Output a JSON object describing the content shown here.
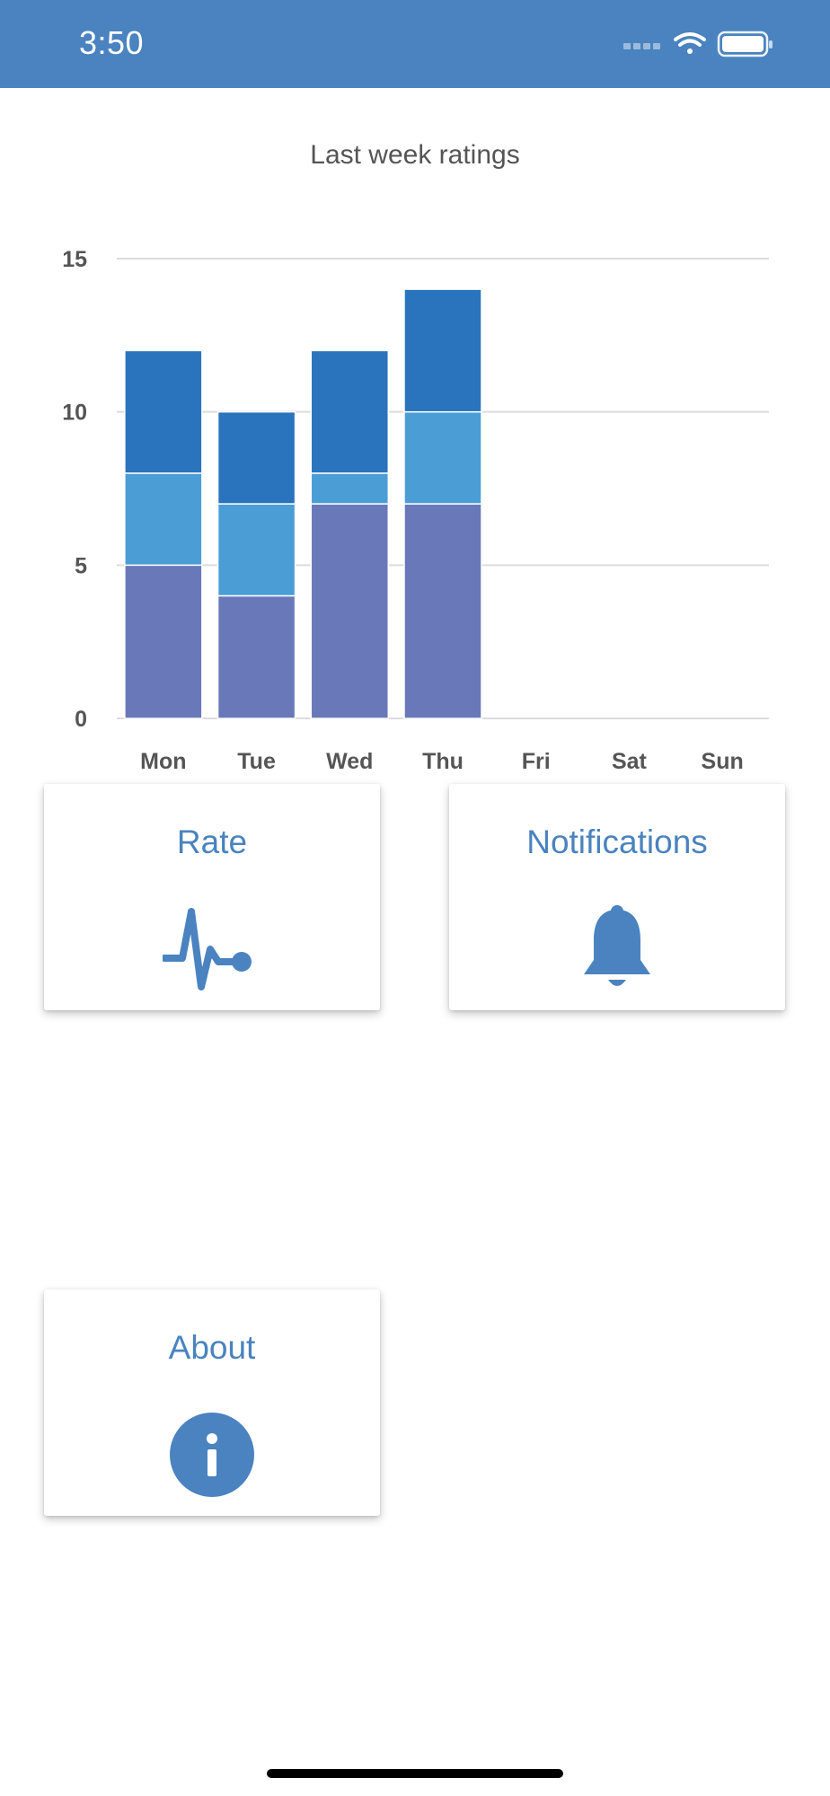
{
  "status_bar": {
    "time": "3:50",
    "icons": [
      "signal-icon",
      "wifi-icon",
      "battery-icon"
    ]
  },
  "colors": {
    "header": "#4a83bf",
    "accent": "#4a83bf",
    "series_bottom": "#6878b9",
    "series_middle": "#4b9dd6",
    "series_top": "#2a73bd"
  },
  "chart_data": {
    "type": "bar",
    "stacked": true,
    "title": "Last week ratings",
    "categories": [
      "Mon",
      "Tue",
      "Wed",
      "Thu",
      "Fri",
      "Sat",
      "Sun"
    ],
    "series": [
      {
        "color": "#6878b9",
        "values": [
          5,
          4,
          7,
          7,
          0,
          0,
          0
        ]
      },
      {
        "color": "#4b9dd6",
        "values": [
          3,
          3,
          1,
          3,
          0,
          0,
          0
        ]
      },
      {
        "color": "#2a73bd",
        "values": [
          4,
          3,
          4,
          4,
          0,
          0,
          0
        ]
      }
    ],
    "ylim": [
      0,
      15
    ],
    "yticks": [
      "0",
      "5",
      "10",
      "15"
    ],
    "grid": true
  },
  "cards": {
    "rate": {
      "label": "Rate",
      "icon": "heartbeat-icon"
    },
    "notifications": {
      "label": "Notifications",
      "icon": "bell-icon"
    },
    "about": {
      "label": "About",
      "icon": "info-icon"
    }
  }
}
